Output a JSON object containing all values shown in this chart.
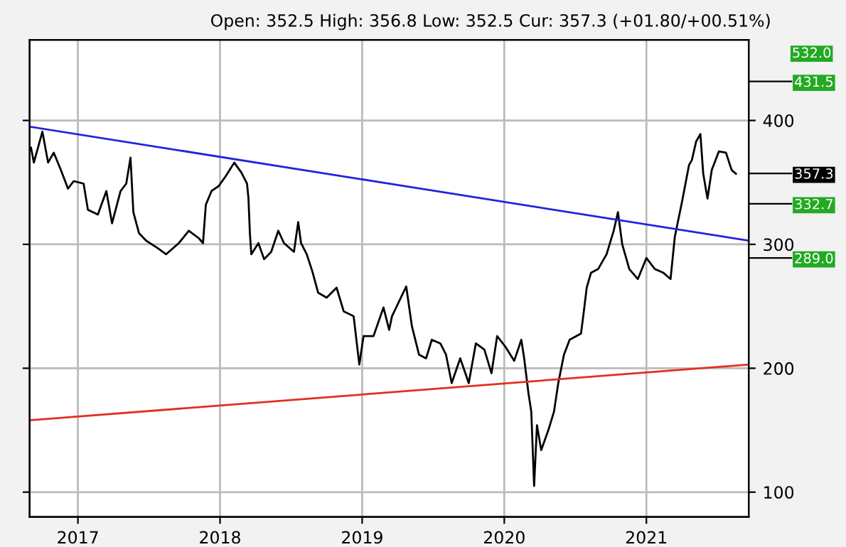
{
  "chart_data": {
    "type": "line",
    "subtitle": "Open: 352.5 High: 356.8 Low: 352.5 Cur: 357.3 (+01.80/+00.51%)",
    "series": [
      {
        "color": "#000000",
        "x": [
          2016.67,
          2016.69,
          2016.75,
          2016.79,
          2016.83,
          2016.88,
          2016.93,
          2016.97,
          2017.04,
          2017.07,
          2017.14,
          2017.2,
          2017.24,
          2017.3,
          2017.34,
          2017.37,
          2017.39,
          2017.43,
          2017.48,
          2017.56,
          2017.62,
          2017.67,
          2017.71,
          2017.78,
          2017.85,
          2017.88,
          2017.9,
          2017.94,
          2017.99,
          2018.04,
          2018.1,
          2018.15,
          2018.19,
          2018.2,
          2018.21,
          2018.22,
          2018.27,
          2018.31,
          2018.36,
          2018.41,
          2018.45,
          2018.52,
          2018.55,
          2018.57,
          2018.61,
          2018.65,
          2018.69,
          2018.75,
          2018.82,
          2018.87,
          2018.94,
          2018.98,
          2019.01,
          2019.08,
          2019.15,
          2019.19,
          2019.21,
          2019.31,
          2019.35,
          2019.4,
          2019.45,
          2019.49,
          2019.55,
          2019.59,
          2019.63,
          2019.69,
          2019.75,
          2019.8,
          2019.86,
          2019.91,
          2019.95,
          2020.01,
          2020.07,
          2020.12,
          2020.14,
          2020.17,
          2020.19,
          2020.21,
          2020.23,
          2020.26,
          2020.31,
          2020.35,
          2020.38,
          2020.42,
          2020.46,
          2020.54,
          2020.56,
          2020.58,
          2020.61,
          2020.66,
          2020.72,
          2020.77,
          2020.8,
          2020.83,
          2020.88,
          2020.94,
          2021.0,
          2021.06,
          2021.12,
          2021.17,
          2021.2,
          2021.25,
          2021.3,
          2021.32,
          2021.35,
          2021.38,
          2021.4,
          2021.43,
          2021.46,
          2021.51,
          2021.56,
          2021.6,
          2021.63
        ],
        "values": [
          378,
          366,
          391,
          366,
          374,
          360,
          345,
          351,
          349,
          328,
          324,
          343,
          317,
          343,
          349,
          370,
          326,
          309,
          303,
          297,
          292,
          297,
          301,
          311,
          305,
          301,
          332,
          343,
          347,
          355,
          366,
          358,
          349,
          337,
          309,
          292,
          301,
          288,
          294,
          311,
          301,
          294,
          318,
          301,
          292,
          278,
          261,
          257,
          265,
          246,
          242,
          203,
          226,
          226,
          249,
          231,
          242,
          266,
          234,
          211,
          208,
          223,
          220,
          211,
          188,
          208,
          188,
          220,
          215,
          196,
          226,
          217,
          206,
          223,
          208,
          180,
          165,
          105,
          154,
          134,
          150,
          165,
          188,
          211,
          223,
          228,
          246,
          265,
          277,
          280,
          292,
          311,
          326,
          300,
          280,
          272,
          289,
          280,
          277,
          272,
          306,
          334,
          364,
          368,
          383,
          389,
          357,
          337,
          360,
          375,
          374,
          360,
          357
        ]
      },
      {
        "type": "line",
        "color": "#2222dd",
        "x": [
          2016.66,
          2021.72
        ],
        "values": [
          395,
          303
        ]
      },
      {
        "type": "line",
        "color": "#e03020",
        "x": [
          2016.66,
          2021.72
        ],
        "values": [
          158,
          203
        ]
      }
    ],
    "annotations": [
      "532.0"
    ],
    "y2lim": [
      80,
      465
    ],
    "y2ticks": [
      {
        "value": 431.5,
        "label": "431.5"
      },
      {
        "value": 357.3,
        "label": "357.3"
      },
      {
        "value": 332.7,
        "label": "332.7"
      },
      {
        "value": 289.0,
        "label": "289.0"
      }
    ],
    "xlim": [
      2016.66,
      2021.72
    ],
    "xticks": [
      2017,
      2018,
      2019,
      2020,
      2021
    ],
    "ylim": [
      80,
      465
    ],
    "yticks": [
      100,
      200,
      300,
      400
    ],
    "tick_labels": "xy2",
    "grid": true,
    "line_style": "solid"
  }
}
